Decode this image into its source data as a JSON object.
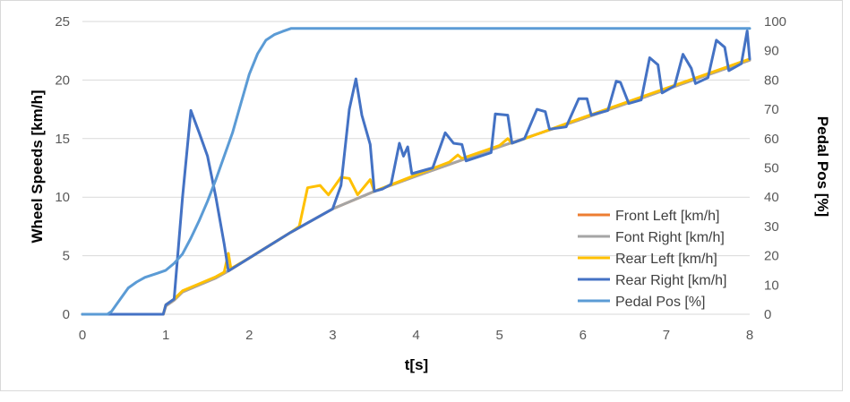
{
  "chart_data": {
    "type": "line",
    "xlabel": "t[s]",
    "ylabel": "Wheel Speeds [km/h]",
    "y2label": "Pedal Pos [%]",
    "xlim": [
      0,
      8
    ],
    "ylim": [
      0,
      25
    ],
    "y2lim": [
      0,
      100
    ],
    "x_ticks": [
      0,
      1,
      2,
      3,
      4,
      5,
      6,
      7,
      8
    ],
    "y_ticks": [
      0,
      5,
      10,
      15,
      20,
      25
    ],
    "y2_ticks": [
      0,
      10,
      20,
      30,
      40,
      50,
      60,
      70,
      80,
      90,
      100
    ],
    "grid": "horizontal",
    "legend_position": "bottom-right",
    "series": [
      {
        "name": "Front Left [km/h]",
        "color": "#ed7d31",
        "axis": "left",
        "points": [
          [
            0,
            0
          ],
          [
            0.97,
            0
          ],
          [
            1.0,
            0.7
          ],
          [
            1.1,
            1.2
          ],
          [
            1.2,
            1.9
          ],
          [
            1.4,
            2.5
          ],
          [
            1.6,
            3.1
          ],
          [
            1.75,
            3.7
          ],
          [
            2.0,
            4.8
          ],
          [
            2.5,
            7.0
          ],
          [
            3.0,
            9.0
          ],
          [
            3.5,
            10.5
          ],
          [
            4.0,
            11.8
          ],
          [
            5.0,
            14.3
          ],
          [
            6.0,
            16.7
          ],
          [
            7.0,
            19.2
          ],
          [
            8.0,
            21.7
          ]
        ]
      },
      {
        "name": "Font Right [km/h]",
        "color": "#a5a5a5",
        "axis": "left",
        "points": [
          [
            0,
            0
          ],
          [
            0.97,
            0
          ],
          [
            1.0,
            0.7
          ],
          [
            1.1,
            1.2
          ],
          [
            1.2,
            1.9
          ],
          [
            1.4,
            2.5
          ],
          [
            1.6,
            3.1
          ],
          [
            1.75,
            3.7
          ],
          [
            2.0,
            4.8
          ],
          [
            2.5,
            7.0
          ],
          [
            3.0,
            9.0
          ],
          [
            3.5,
            10.5
          ],
          [
            4.0,
            11.8
          ],
          [
            5.0,
            14.3
          ],
          [
            6.0,
            16.7
          ],
          [
            7.0,
            19.2
          ],
          [
            8.0,
            21.7
          ]
        ]
      },
      {
        "name": "Rear Left [km/h]",
        "color": "#ffc000",
        "axis": "left",
        "points": [
          [
            0,
            0
          ],
          [
            0.97,
            0
          ],
          [
            1.0,
            0.8
          ],
          [
            1.1,
            1.3
          ],
          [
            1.2,
            2.0
          ],
          [
            1.4,
            2.6
          ],
          [
            1.6,
            3.2
          ],
          [
            1.7,
            3.6
          ],
          [
            1.75,
            5.2
          ],
          [
            1.78,
            3.9
          ],
          [
            2.0,
            4.8
          ],
          [
            2.5,
            7.0
          ],
          [
            2.6,
            7.5
          ],
          [
            2.7,
            10.8
          ],
          [
            2.85,
            11.0
          ],
          [
            2.95,
            10.2
          ],
          [
            3.1,
            11.7
          ],
          [
            3.2,
            11.6
          ],
          [
            3.3,
            10.2
          ],
          [
            3.45,
            11.5
          ],
          [
            3.5,
            10.5
          ],
          [
            4.0,
            11.9
          ],
          [
            4.4,
            13.0
          ],
          [
            4.5,
            13.6
          ],
          [
            4.55,
            13.3
          ],
          [
            5.0,
            14.4
          ],
          [
            5.1,
            15.0
          ],
          [
            5.15,
            14.6
          ],
          [
            6.0,
            16.8
          ],
          [
            7.0,
            19.3
          ],
          [
            8.0,
            21.8
          ]
        ]
      },
      {
        "name": "Rear Right [km/h]",
        "color": "#4472c4",
        "axis": "left",
        "points": [
          [
            0,
            0
          ],
          [
            0.97,
            0
          ],
          [
            1.0,
            0.8
          ],
          [
            1.1,
            1.3
          ],
          [
            1.2,
            10.0
          ],
          [
            1.3,
            17.4
          ],
          [
            1.4,
            15.5
          ],
          [
            1.5,
            13.5
          ],
          [
            1.6,
            10.0
          ],
          [
            1.7,
            6.0
          ],
          [
            1.75,
            3.7
          ],
          [
            2.0,
            4.8
          ],
          [
            2.5,
            7.0
          ],
          [
            3.0,
            9.0
          ],
          [
            3.1,
            11.0
          ],
          [
            3.2,
            17.5
          ],
          [
            3.28,
            20.1
          ],
          [
            3.35,
            17.0
          ],
          [
            3.45,
            14.5
          ],
          [
            3.5,
            10.5
          ],
          [
            3.6,
            10.7
          ],
          [
            3.7,
            11.1
          ],
          [
            3.8,
            14.6
          ],
          [
            3.85,
            13.5
          ],
          [
            3.9,
            14.3
          ],
          [
            3.95,
            12.0
          ],
          [
            4.2,
            12.5
          ],
          [
            4.35,
            15.5
          ],
          [
            4.45,
            14.6
          ],
          [
            4.55,
            14.5
          ],
          [
            4.6,
            13.1
          ],
          [
            4.9,
            13.8
          ],
          [
            4.95,
            17.1
          ],
          [
            5.1,
            17.0
          ],
          [
            5.15,
            14.6
          ],
          [
            5.3,
            15.0
          ],
          [
            5.45,
            17.5
          ],
          [
            5.55,
            17.3
          ],
          [
            5.6,
            15.8
          ],
          [
            5.8,
            16.0
          ],
          [
            5.95,
            18.4
          ],
          [
            6.05,
            18.4
          ],
          [
            6.1,
            17.0
          ],
          [
            6.3,
            17.4
          ],
          [
            6.4,
            19.9
          ],
          [
            6.45,
            19.8
          ],
          [
            6.55,
            18.0
          ],
          [
            6.7,
            18.3
          ],
          [
            6.8,
            21.9
          ],
          [
            6.9,
            21.3
          ],
          [
            6.95,
            18.9
          ],
          [
            7.1,
            19.5
          ],
          [
            7.2,
            22.2
          ],
          [
            7.3,
            21.0
          ],
          [
            7.35,
            19.7
          ],
          [
            7.5,
            20.2
          ],
          [
            7.6,
            23.4
          ],
          [
            7.7,
            22.8
          ],
          [
            7.75,
            20.8
          ],
          [
            7.9,
            21.4
          ],
          [
            7.97,
            24.2
          ],
          [
            8.0,
            21.8
          ]
        ]
      },
      {
        "name": "Pedal Pos [%]",
        "color": "#5b9bd5",
        "axis": "right",
        "points": [
          [
            0,
            0
          ],
          [
            0.3,
            0
          ],
          [
            0.35,
            1
          ],
          [
            0.45,
            5
          ],
          [
            0.55,
            9
          ],
          [
            0.65,
            11
          ],
          [
            0.75,
            12.6
          ],
          [
            0.9,
            14
          ],
          [
            1.0,
            15
          ],
          [
            1.1,
            17.4
          ],
          [
            1.2,
            20.6
          ],
          [
            1.3,
            26
          ],
          [
            1.4,
            32
          ],
          [
            1.5,
            38.6
          ],
          [
            1.6,
            46
          ],
          [
            1.7,
            54
          ],
          [
            1.8,
            62
          ],
          [
            1.9,
            72
          ],
          [
            2.0,
            82
          ],
          [
            2.1,
            89
          ],
          [
            2.2,
            93.6
          ],
          [
            2.3,
            95.5
          ],
          [
            2.4,
            96.6
          ],
          [
            2.5,
            97.6
          ],
          [
            8.0,
            97.6
          ]
        ]
      }
    ]
  }
}
